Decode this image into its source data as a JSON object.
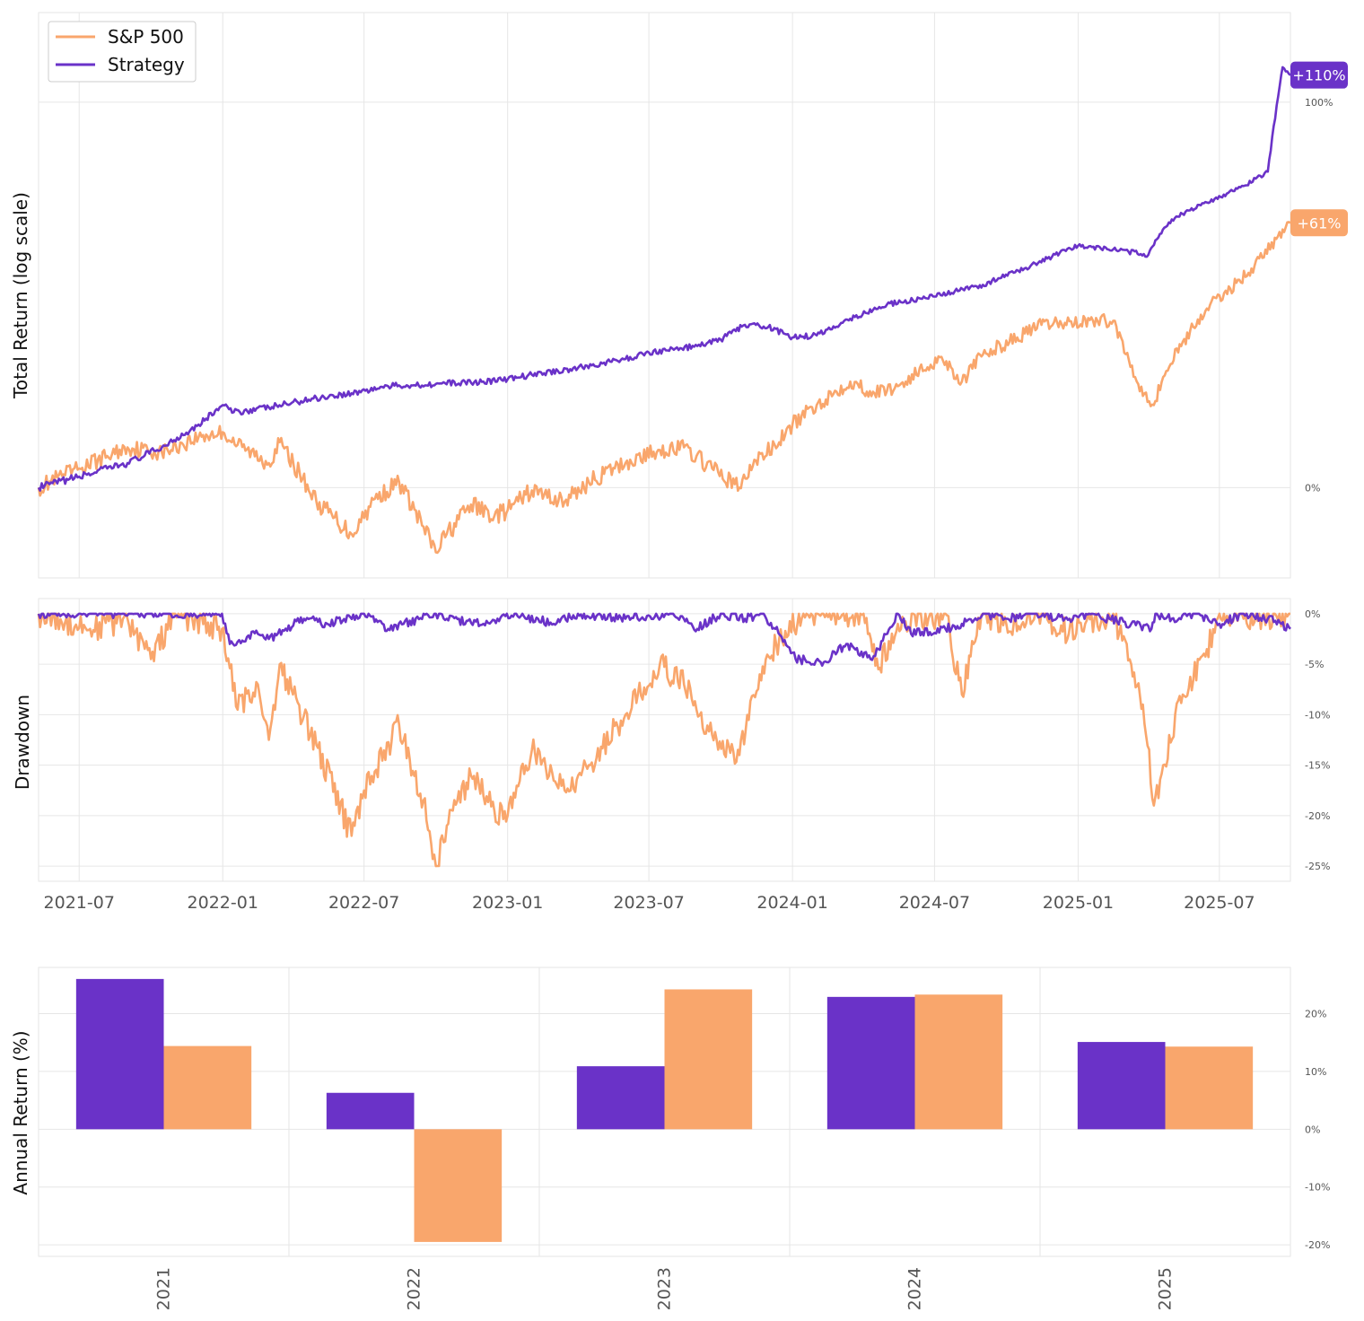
{
  "colors": {
    "strategy": "#6a32c8",
    "sp500": "#f9a66c",
    "grid": "#e6e6e6",
    "text": "#555555"
  },
  "legend": {
    "items": [
      {
        "label": "S&P 500",
        "series": "sp500"
      },
      {
        "label": "Strategy",
        "series": "strategy"
      }
    ],
    "position": "top-left"
  },
  "chart_data": [
    {
      "id": "total_return",
      "type": "line",
      "ylabel": "Total Return (log scale)",
      "yscale": "log",
      "y_ticks": [
        {
          "value": 0,
          "label": "0%"
        },
        {
          "value": 100,
          "label": "100%"
        }
      ],
      "ylim": [
        -15,
        135
      ],
      "xlim": [
        "2021-05-10",
        "2025-09-30"
      ],
      "grid": true,
      "end_labels": [
        {
          "series": "strategy",
          "label": "+110%"
        },
        {
          "series": "sp500",
          "label": "+61%"
        }
      ],
      "series": [
        {
          "name": "Strategy",
          "key": "strategy",
          "x": [
            "2021-05-10",
            "2021-07-01",
            "2021-09-01",
            "2021-10-15",
            "2021-12-01",
            "2022-01-01",
            "2022-01-15",
            "2022-03-01",
            "2022-05-01",
            "2022-06-15",
            "2022-08-01",
            "2022-10-01",
            "2022-12-01",
            "2023-01-01",
            "2023-02-01",
            "2023-04-01",
            "2023-06-01",
            "2023-07-01",
            "2023-09-01",
            "2023-10-01",
            "2023-11-01",
            "2023-12-01",
            "2024-01-01",
            "2024-02-01",
            "2024-03-15",
            "2024-05-01",
            "2024-07-01",
            "2024-09-01",
            "2024-11-01",
            "2025-01-01",
            "2025-02-15",
            "2025-04-01",
            "2025-04-10",
            "2025-05-01",
            "2025-06-15",
            "2025-08-01",
            "2025-09-01",
            "2025-09-20",
            "2025-09-30"
          ],
          "values": [
            0.0,
            2.0,
            4.5,
            7.5,
            12.0,
            16.0,
            14.5,
            15.5,
            17.5,
            18.5,
            20.0,
            20.5,
            21.0,
            21.5,
            22.5,
            24.0,
            26.0,
            27.5,
            29.0,
            30.5,
            34.0,
            33.5,
            31.0,
            31.5,
            35.5,
            39.0,
            41.0,
            44.0,
            49.0,
            54.5,
            53.5,
            52.0,
            56.0,
            62.0,
            67.0,
            72.0,
            76.5,
            113.0,
            110.0
          ]
        },
        {
          "name": "S&P 500",
          "key": "sp500",
          "x": [
            "2021-05-10",
            "2021-07-01",
            "2021-09-01",
            "2021-10-15",
            "2021-12-01",
            "2022-01-01",
            "2022-01-20",
            "2022-03-01",
            "2022-03-15",
            "2022-05-01",
            "2022-06-15",
            "2022-07-15",
            "2022-08-15",
            "2022-10-01",
            "2022-10-15",
            "2022-11-15",
            "2022-12-15",
            "2023-01-01",
            "2023-02-01",
            "2023-03-15",
            "2023-04-15",
            "2023-06-01",
            "2023-07-15",
            "2023-08-15",
            "2023-09-20",
            "2023-10-25",
            "2023-11-15",
            "2023-12-15",
            "2024-01-01",
            "2024-02-01",
            "2024-03-15",
            "2024-04-15",
            "2024-05-15",
            "2024-07-10",
            "2024-08-05",
            "2024-09-01",
            "2024-10-15",
            "2024-11-15",
            "2024-12-15",
            "2025-01-20",
            "2025-02-15",
            "2025-03-15",
            "2025-04-08",
            "2025-04-20",
            "2025-05-15",
            "2025-06-15",
            "2025-07-15",
            "2025-08-15",
            "2025-09-30"
          ],
          "values": [
            0.0,
            3.5,
            7.5,
            6.5,
            9.5,
            10.5,
            8.0,
            4.5,
            8.5,
            -2.5,
            -8.0,
            -2.0,
            1.0,
            -11.0,
            -8.0,
            -3.0,
            -5.0,
            -4.0,
            -0.5,
            -2.5,
            1.0,
            4.5,
            7.0,
            7.5,
            3.5,
            0.0,
            5.0,
            8.5,
            12.0,
            16.0,
            21.0,
            18.5,
            20.0,
            26.5,
            21.0,
            27.0,
            31.0,
            34.0,
            34.5,
            35.0,
            35.0,
            22.0,
            16.0,
            22.0,
            30.0,
            38.0,
            43.0,
            49.0,
            61.0
          ]
        }
      ]
    },
    {
      "id": "drawdown",
      "type": "line",
      "ylabel": "Drawdown",
      "y_ticks": [
        {
          "value": 0,
          "label": "0%"
        },
        {
          "value": -5,
          "label": "-5%"
        },
        {
          "value": -10,
          "label": "-10%"
        },
        {
          "value": -15,
          "label": "-15%"
        },
        {
          "value": -20,
          "label": "-20%"
        },
        {
          "value": -25,
          "label": "-25%"
        }
      ],
      "ylim": [
        -26.5,
        1.5
      ],
      "x_ticks": [
        "2021-07",
        "2022-01",
        "2022-07",
        "2023-01",
        "2023-07",
        "2024-01",
        "2024-07",
        "2025-01",
        "2025-07"
      ],
      "grid": true,
      "series": [
        {
          "name": "Strategy",
          "key": "strategy",
          "x": [
            "2021-05-10",
            "2021-12-31",
            "2022-01-10",
            "2022-02-15",
            "2022-03-01",
            "2022-04-15",
            "2022-05-15",
            "2022-07-01",
            "2022-08-01",
            "2022-10-01",
            "2022-10-15",
            "2022-12-01",
            "2023-01-10",
            "2023-03-01",
            "2023-04-01",
            "2023-06-01",
            "2023-08-01",
            "2023-09-01",
            "2023-10-01",
            "2023-11-01",
            "2023-11-25",
            "2023-12-10",
            "2024-01-05",
            "2024-02-10",
            "2024-03-10",
            "2024-04-10",
            "2024-04-20",
            "2024-05-15",
            "2024-06-01",
            "2024-07-15",
            "2024-08-05",
            "2024-09-01",
            "2024-10-01",
            "2024-11-01",
            "2024-12-15",
            "2025-01-15",
            "2025-02-10",
            "2025-03-10",
            "2025-04-05",
            "2025-04-10",
            "2025-05-01",
            "2025-06-01",
            "2025-07-01",
            "2025-08-01",
            "2025-09-01",
            "2025-09-30"
          ],
          "values": [
            0.0,
            0.0,
            -3.0,
            -2.0,
            -2.5,
            -0.5,
            -1.0,
            0.0,
            -1.5,
            0.0,
            -0.5,
            -1.0,
            0.0,
            -1.0,
            0.0,
            -0.5,
            0.0,
            -1.5,
            0.0,
            -0.5,
            0.0,
            -1.5,
            -4.5,
            -4.8,
            -3.0,
            -4.5,
            -3.5,
            0.0,
            -2.0,
            -1.5,
            -1.0,
            0.0,
            -0.5,
            0.0,
            -0.5,
            0.0,
            -0.5,
            -1.0,
            -1.5,
            0.0,
            -0.5,
            0.0,
            -1.0,
            0.0,
            -0.5,
            -1.5
          ]
        },
        {
          "name": "S&P 500",
          "key": "sp500",
          "x": [
            "2021-05-10",
            "2021-07-15",
            "2021-09-01",
            "2021-10-01",
            "2021-11-01",
            "2021-12-31",
            "2022-01-20",
            "2022-02-15",
            "2022-03-01",
            "2022-03-15",
            "2022-04-01",
            "2022-05-01",
            "2022-06-15",
            "2022-07-01",
            "2022-08-15",
            "2022-09-15",
            "2022-10-01",
            "2022-10-15",
            "2022-11-15",
            "2022-12-15",
            "2023-01-01",
            "2023-02-01",
            "2023-03-15",
            "2023-04-15",
            "2023-06-01",
            "2023-07-15",
            "2023-08-15",
            "2023-09-20",
            "2023-10-25",
            "2023-11-20",
            "2023-12-15",
            "2024-01-15",
            "2024-04-01",
            "2024-04-20",
            "2024-05-15",
            "2024-07-15",
            "2024-08-05",
            "2024-08-20",
            "2024-09-01",
            "2024-10-01",
            "2024-11-15",
            "2024-12-20",
            "2025-01-10",
            "2025-02-15",
            "2025-03-10",
            "2025-03-25",
            "2025-04-08",
            "2025-04-20",
            "2025-05-15",
            "2025-06-15",
            "2025-07-01",
            "2025-08-01",
            "2025-09-30"
          ],
          "values": [
            0.0,
            -1.5,
            -0.5,
            -4.5,
            0.0,
            -1.5,
            -9.5,
            -7.0,
            -12.5,
            -5.0,
            -8.0,
            -13.0,
            -22.0,
            -17.5,
            -11.0,
            -18.5,
            -25.0,
            -21.0,
            -16.0,
            -19.5,
            -20.0,
            -13.5,
            -17.5,
            -15.0,
            -10.0,
            -5.0,
            -7.0,
            -12.0,
            -14.0,
            -6.0,
            -2.5,
            0.0,
            0.0,
            -5.5,
            -1.0,
            0.0,
            -8.0,
            -3.0,
            0.0,
            -1.0,
            0.0,
            -2.0,
            -1.0,
            0.0,
            -5.0,
            -9.0,
            -19.0,
            -15.0,
            -8.0,
            -3.5,
            0.0,
            -0.5,
            0.0
          ]
        }
      ]
    },
    {
      "id": "annual_return",
      "type": "bar",
      "ylabel": "Annual Return (%)",
      "categories": [
        "2021",
        "2022",
        "2023",
        "2024",
        "2025"
      ],
      "y_ticks": [
        {
          "value": 20,
          "label": "20%"
        },
        {
          "value": 10,
          "label": "10%"
        },
        {
          "value": 0,
          "label": "0%"
        },
        {
          "value": -10,
          "label": "-10%"
        },
        {
          "value": -20,
          "label": "-20%"
        }
      ],
      "ylim": [
        -22,
        28
      ],
      "grid": true,
      "series": [
        {
          "name": "Strategy",
          "key": "strategy",
          "values": [
            26.0,
            6.3,
            10.9,
            22.9,
            15.1
          ]
        },
        {
          "name": "S&P 500",
          "key": "sp500",
          "values": [
            14.4,
            -19.5,
            24.2,
            23.3,
            14.3
          ]
        }
      ]
    }
  ]
}
